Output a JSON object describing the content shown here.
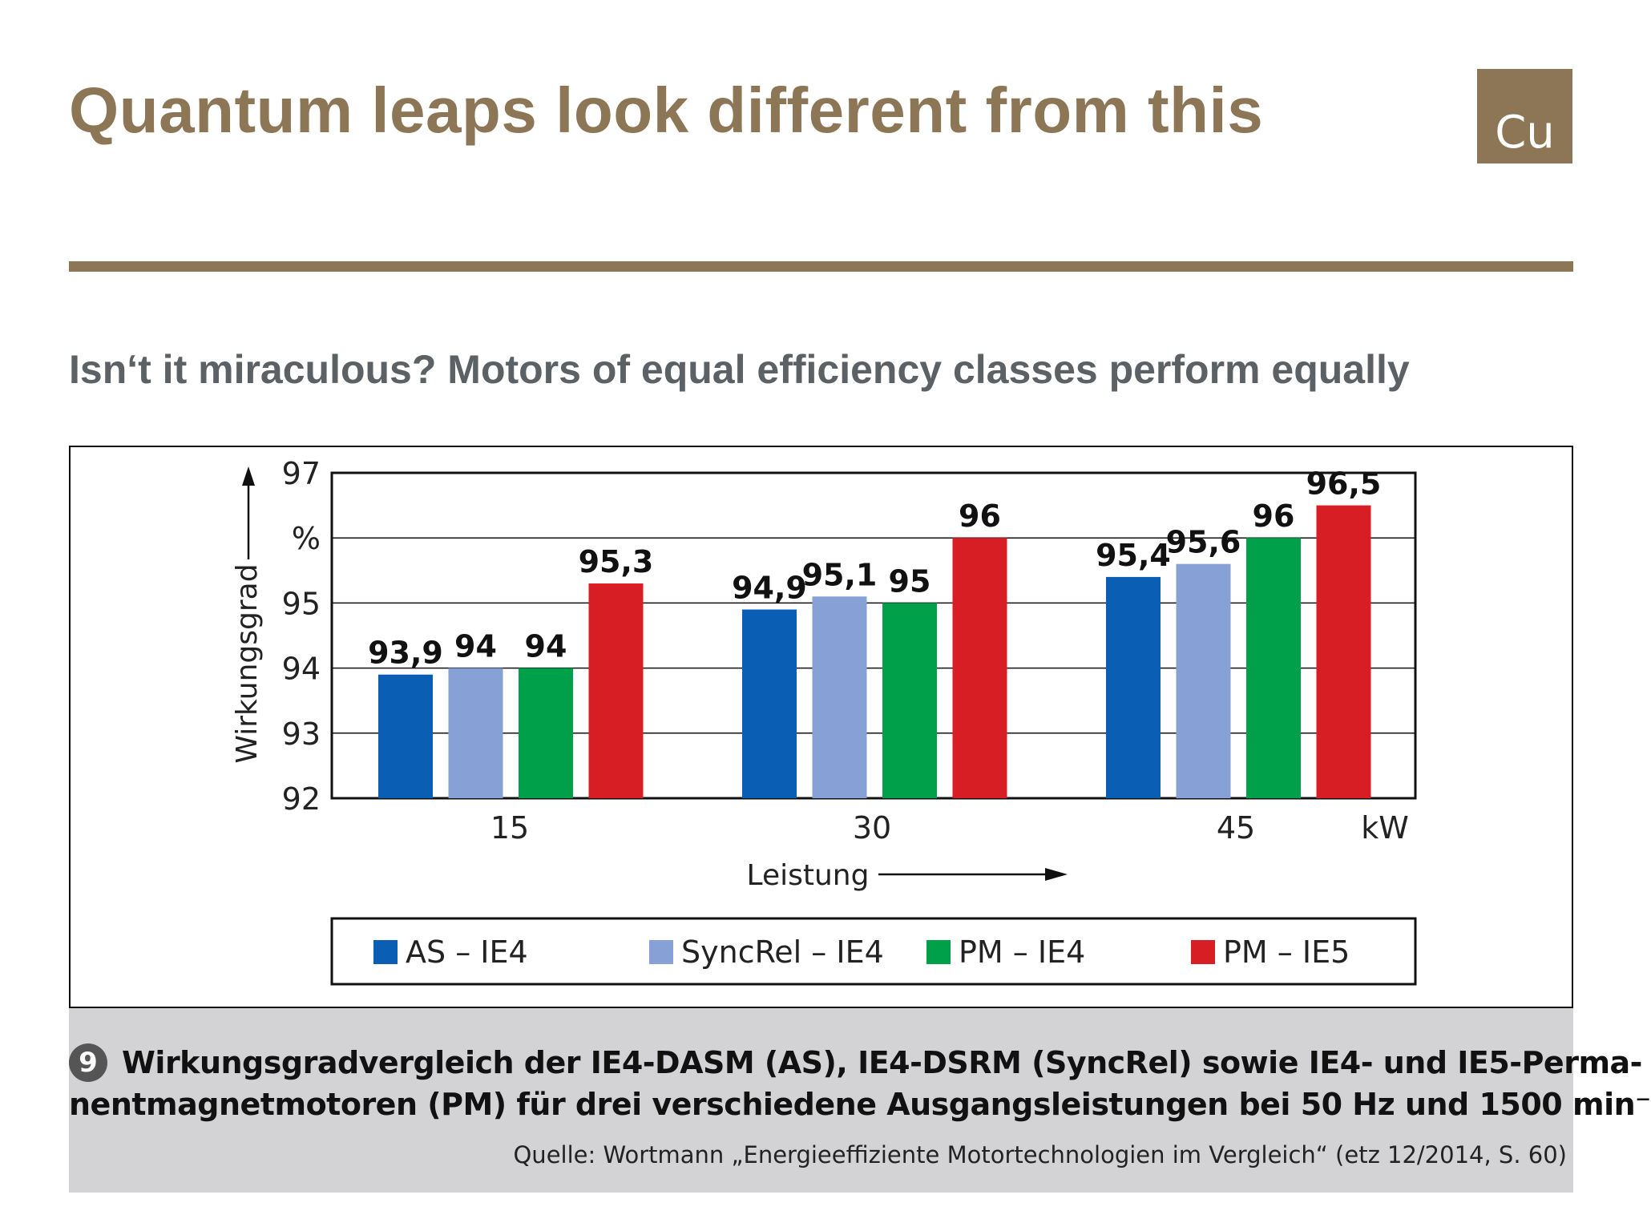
{
  "slide": {
    "title": "Quantum leaps look different from this",
    "logo_text": "Cu",
    "subtitle": "Isn‘t it miraculous? Motors of equal efficiency classes perform equally"
  },
  "caption": {
    "number": "9",
    "line1": "Wirkungsgradvergleich der IE4-DASM (AS), IE4-DSRM (SyncRel) sowie IE4- und IE5-Perma-",
    "line2": "nentmagnetmotoren (PM) für drei verschiedene Ausgangsleistungen bei 50 Hz und 1500 min⁻",
    "source": "Quelle:  Wortmann „Energieeffiziente Motortechnologien im Vergleich“ (etz 12/2014, S. 60)"
  },
  "colors": {
    "brand": "#8c7656",
    "subtitle": "#5c6166",
    "caption_bg": "#d3d3d5"
  },
  "chart_data": {
    "type": "bar",
    "categories": [
      "15",
      "30",
      "45"
    ],
    "x_unit": "kW",
    "xlabel": "Leistung",
    "ylabel": "Wirkungsgrad",
    "y_unit": "%",
    "ylim": [
      92,
      97
    ],
    "yticks": [
      92,
      93,
      94,
      95,
      97
    ],
    "grid": true,
    "legend_position": "bottom",
    "series": [
      {
        "name": "AS – IE4",
        "color": "#0a5fb4",
        "values": [
          93.9,
          94.9,
          95.4
        ],
        "labels": [
          "93,9",
          "94,9",
          "95,4"
        ]
      },
      {
        "name": "SyncRel – IE4",
        "color": "#87a0d5",
        "values": [
          94.0,
          95.1,
          95.6
        ],
        "labels": [
          "94",
          "95,1",
          "95,6"
        ]
      },
      {
        "name": "PM – IE4",
        "color": "#00a04a",
        "values": [
          94.0,
          95.0,
          96.0
        ],
        "labels": [
          "94",
          "95",
          "96"
        ]
      },
      {
        "name": "PM – IE5",
        "color": "#d81e25",
        "values": [
          95.3,
          96.0,
          96.5
        ],
        "labels": [
          "95,3",
          "96",
          "96,5"
        ]
      }
    ]
  }
}
